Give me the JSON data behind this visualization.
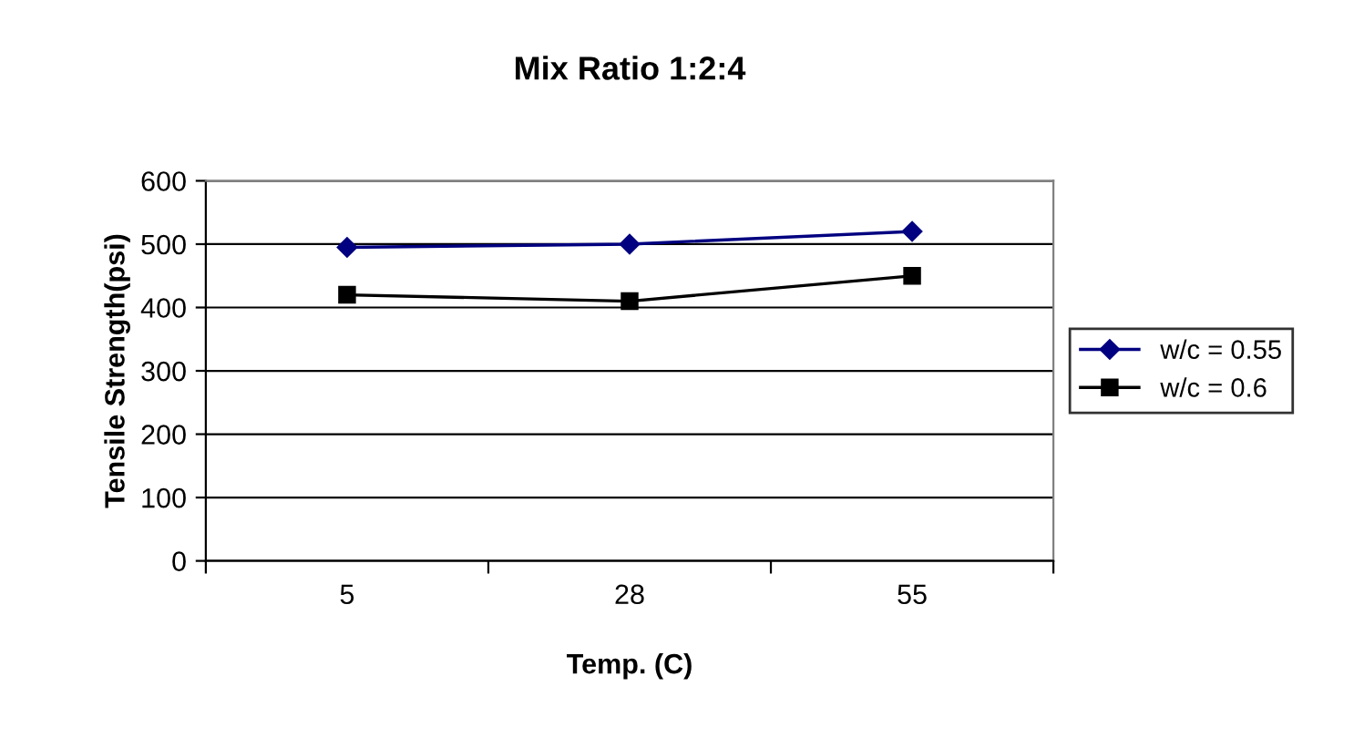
{
  "chart_data": {
    "type": "line",
    "title": "Mix Ratio 1:2:4",
    "xlabel": "Temp. (C)",
    "ylabel": "Tensile Strength(psi)",
    "categories": [
      "5",
      "28",
      "55"
    ],
    "series": [
      {
        "name": "w/c = 0.55",
        "color": "#000080",
        "marker": "diamond",
        "values": [
          495,
          500,
          520
        ]
      },
      {
        "name": "w/c = 0.6",
        "color": "#000000",
        "marker": "square",
        "values": [
          420,
          410,
          450
        ]
      }
    ],
    "ylim": [
      0,
      600
    ],
    "yticks": [
      0,
      100,
      200,
      300,
      400,
      500,
      600
    ],
    "grid": "y",
    "legend": "right",
    "line_style": "solid"
  }
}
